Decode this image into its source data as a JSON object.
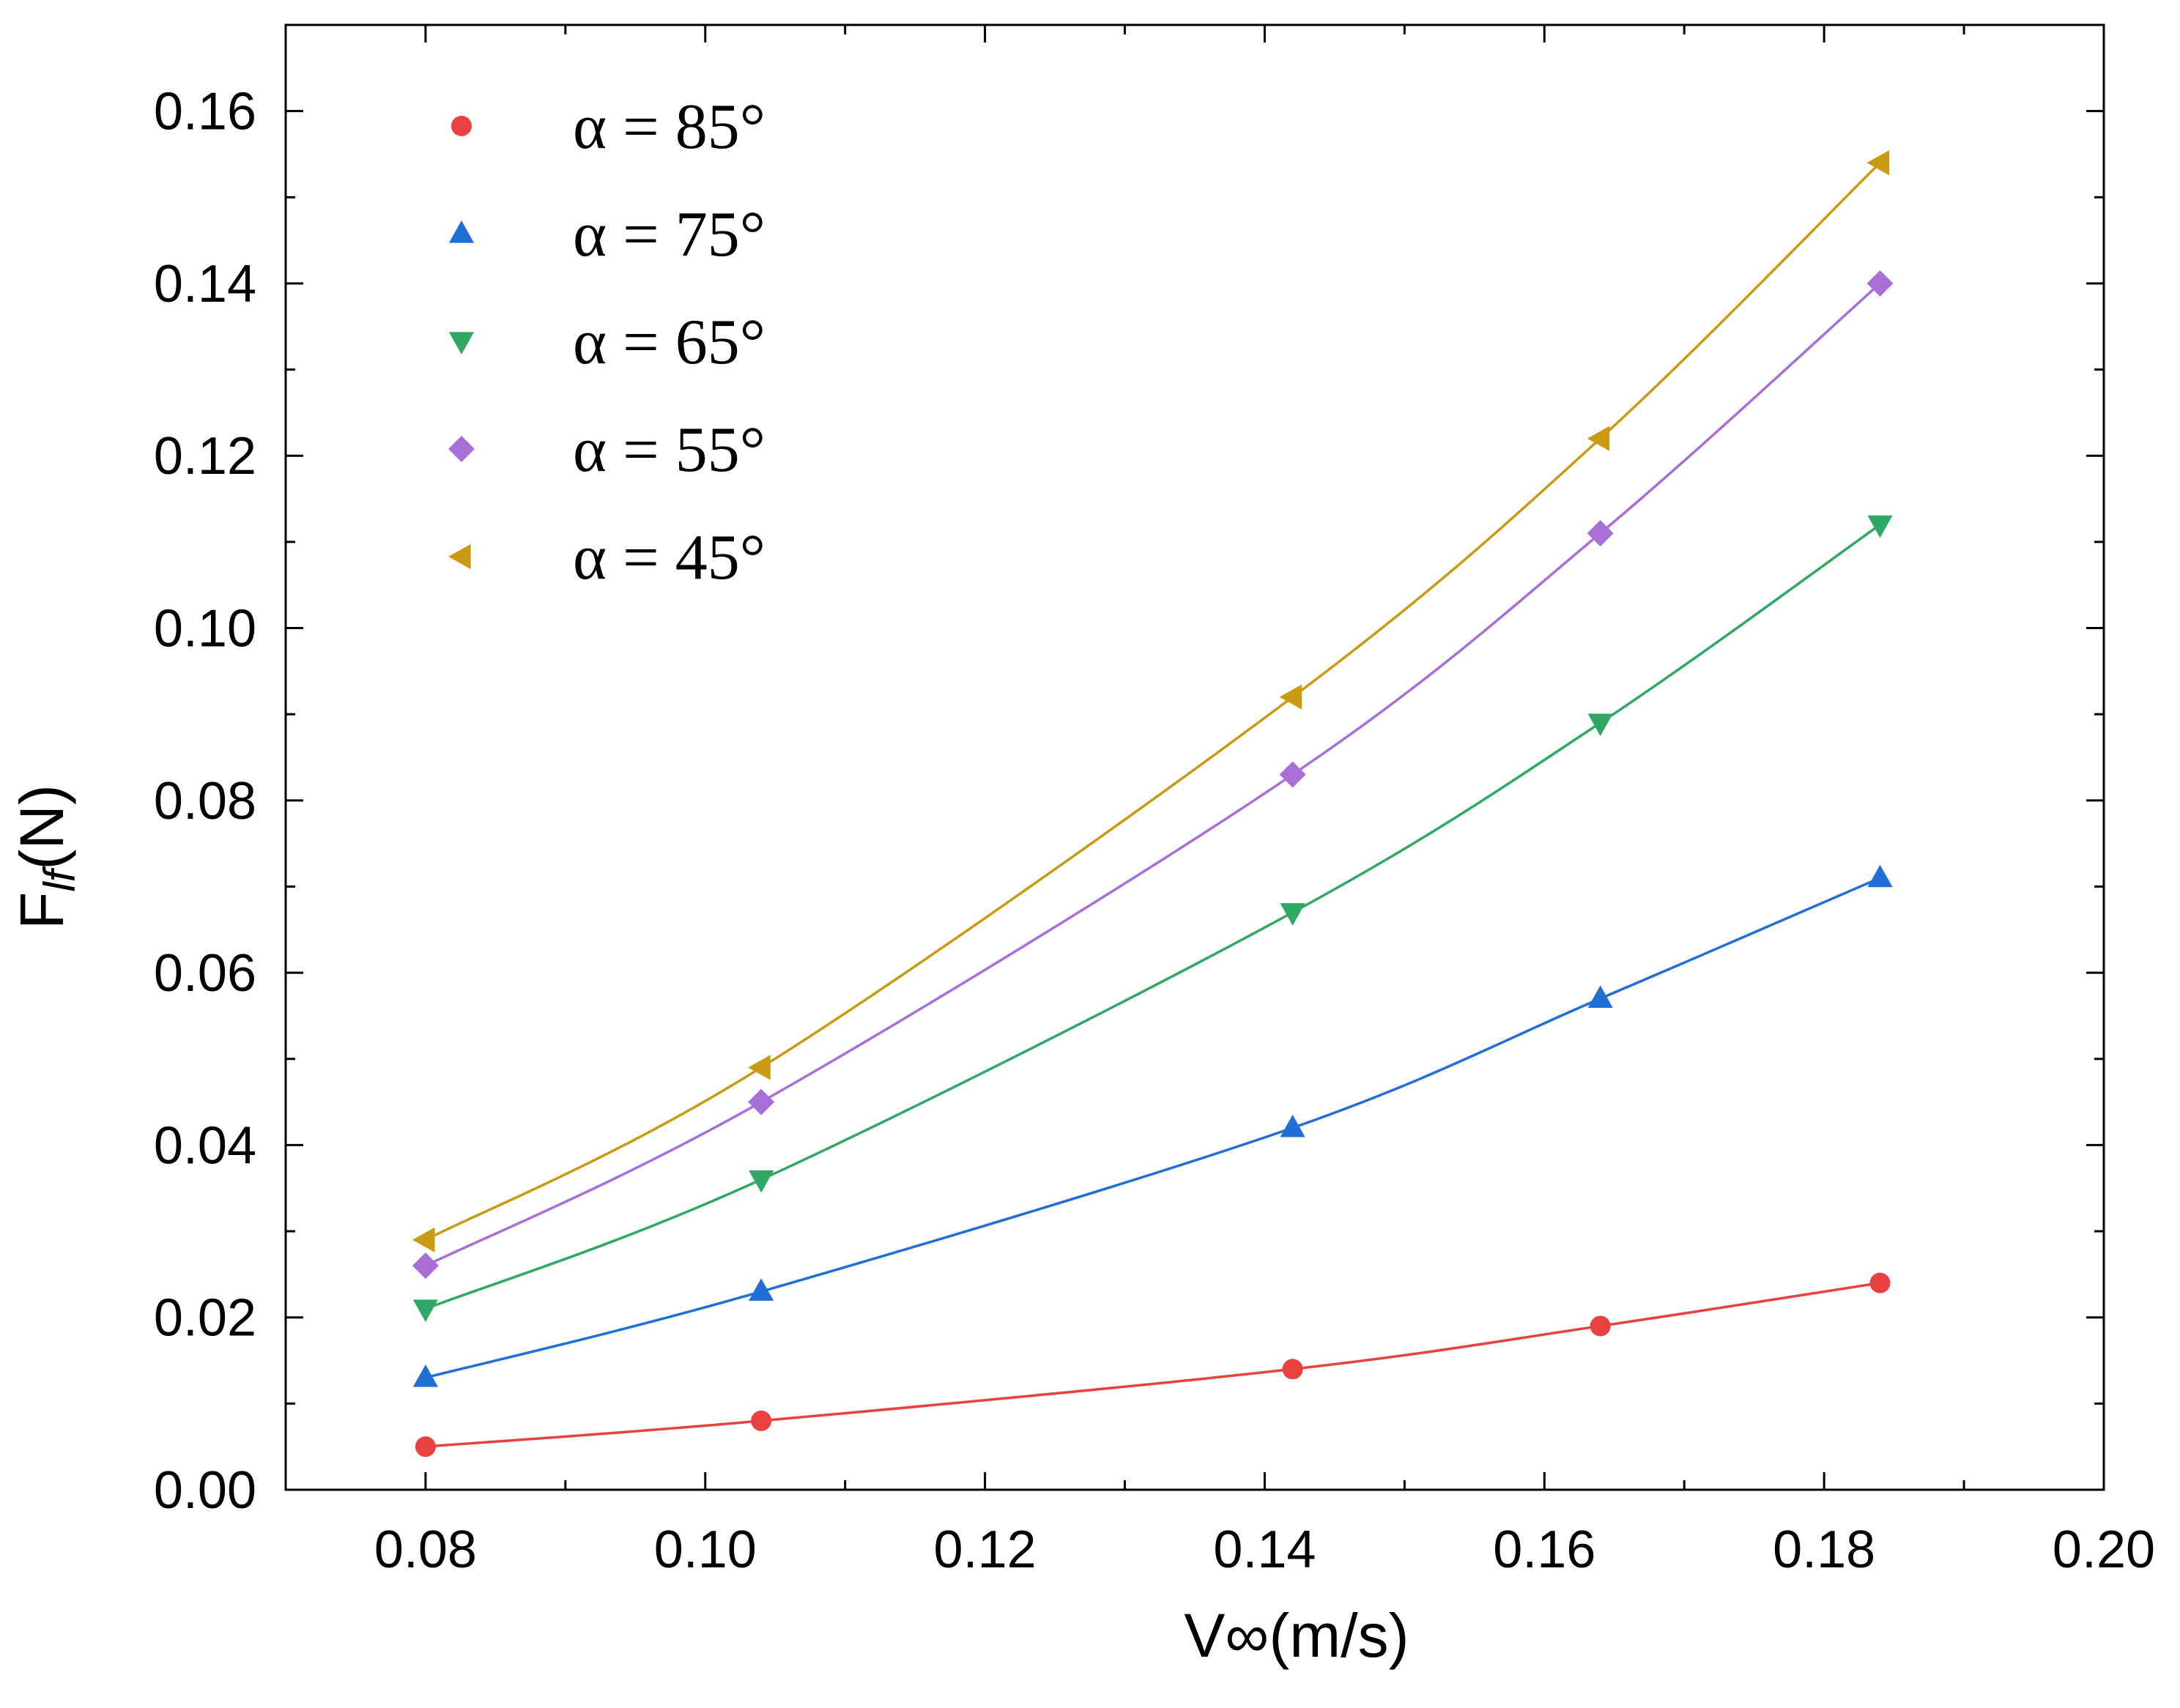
{
  "chart_data": {
    "type": "line",
    "title": "",
    "xlabel": "V∞(m/s)",
    "ylabel": "F_lf (N)",
    "ylabel_main": "F",
    "ylabel_sub": "lf",
    "ylabel_unit": "(N)",
    "xlim": [
      0.07,
      0.2
    ],
    "ylim": [
      0.0,
      0.17
    ],
    "xticks": [
      0.08,
      0.1,
      0.12,
      0.14,
      0.16,
      0.18,
      0.2
    ],
    "xtick_labels": [
      "0.08",
      "0.10",
      "0.12",
      "0.14",
      "0.16",
      "0.18",
      "0.20"
    ],
    "yticks": [
      0.0,
      0.02,
      0.04,
      0.06,
      0.08,
      0.1,
      0.12,
      0.14,
      0.16
    ],
    "ytick_labels": [
      "0.00",
      "0.02",
      "0.04",
      "0.06",
      "0.08",
      "0.10",
      "0.12",
      "0.14",
      "0.16"
    ],
    "x_minor_step": 0.01,
    "y_minor_step": 0.01,
    "grid": false,
    "legend_position": "top-left",
    "x": [
      0.08,
      0.104,
      0.142,
      0.164,
      0.184
    ],
    "series": [
      {
        "name": "α = 85°",
        "marker": "circle",
        "color": "#e8413f",
        "values": [
          0.005,
          0.008,
          0.014,
          0.019,
          0.024
        ]
      },
      {
        "name": "α = 75°",
        "marker": "triangle-up",
        "color": "#1f6fd6",
        "values": [
          0.013,
          0.023,
          0.042,
          0.057,
          0.071
        ]
      },
      {
        "name": "α = 65°",
        "marker": "triangle-down",
        "color": "#2fa866",
        "values": [
          0.021,
          0.036,
          0.067,
          0.089,
          0.112
        ]
      },
      {
        "name": "α = 55°",
        "marker": "diamond",
        "color": "#a86fd9",
        "values": [
          0.026,
          0.045,
          0.083,
          0.111,
          0.14
        ]
      },
      {
        "name": "α = 45°",
        "marker": "triangle-left",
        "color": "#c99a12",
        "values": [
          0.029,
          0.049,
          0.092,
          0.122,
          0.154
        ]
      }
    ]
  }
}
